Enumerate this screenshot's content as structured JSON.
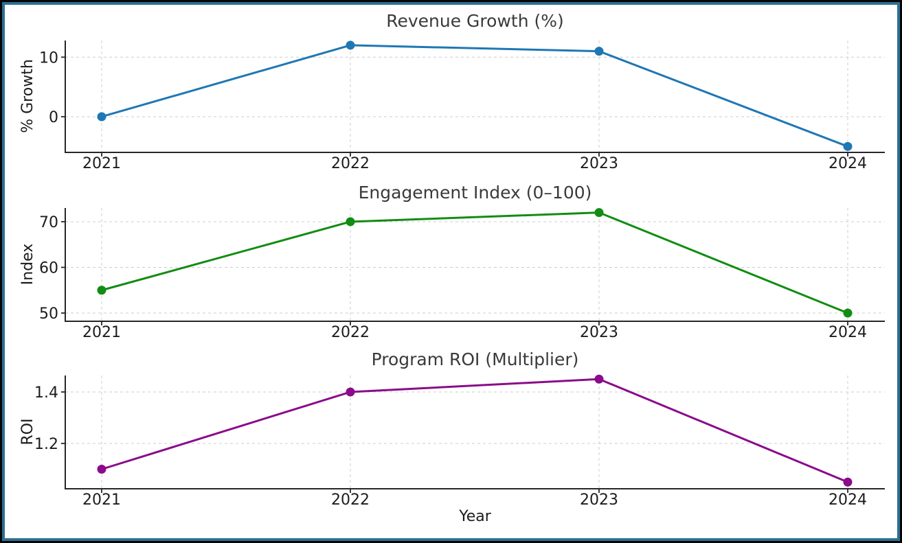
{
  "figure": {
    "background": "#ffffff",
    "border_outer_color": "#000000",
    "border_inner_color": "#2d6f93"
  },
  "chart_data": [
    {
      "type": "line",
      "title": "Revenue Growth (%)",
      "ylabel": "% Growth",
      "color": "#1f77b4",
      "x": [
        "2021",
        "2022",
        "2023",
        "2024"
      ],
      "values": [
        0,
        12,
        11,
        -5
      ],
      "yticks": [
        0,
        10
      ],
      "ylim": [
        -6,
        12.8
      ],
      "grid": true,
      "marker": "circle",
      "legend": "none"
    },
    {
      "type": "line",
      "title": "Engagement Index (0–100)",
      "ylabel": "Index",
      "color": "#128c12",
      "x": [
        "2021",
        "2022",
        "2023",
        "2024"
      ],
      "values": [
        55,
        70,
        72,
        50
      ],
      "yticks": [
        50,
        60,
        70
      ],
      "ylim": [
        48.2,
        73
      ],
      "grid": true,
      "marker": "circle",
      "legend": "none"
    },
    {
      "type": "line",
      "title": "Program ROI (Multiplier)",
      "ylabel": "ROI",
      "xlabel": "Year",
      "color": "#8a0b8b",
      "x": [
        "2021",
        "2022",
        "2023",
        "2024"
      ],
      "values": [
        1.1,
        1.4,
        1.45,
        1.05
      ],
      "yticks": [
        1.2,
        1.4
      ],
      "ylim": [
        1.024,
        1.464
      ],
      "grid": true,
      "marker": "circle",
      "legend": "none"
    }
  ]
}
